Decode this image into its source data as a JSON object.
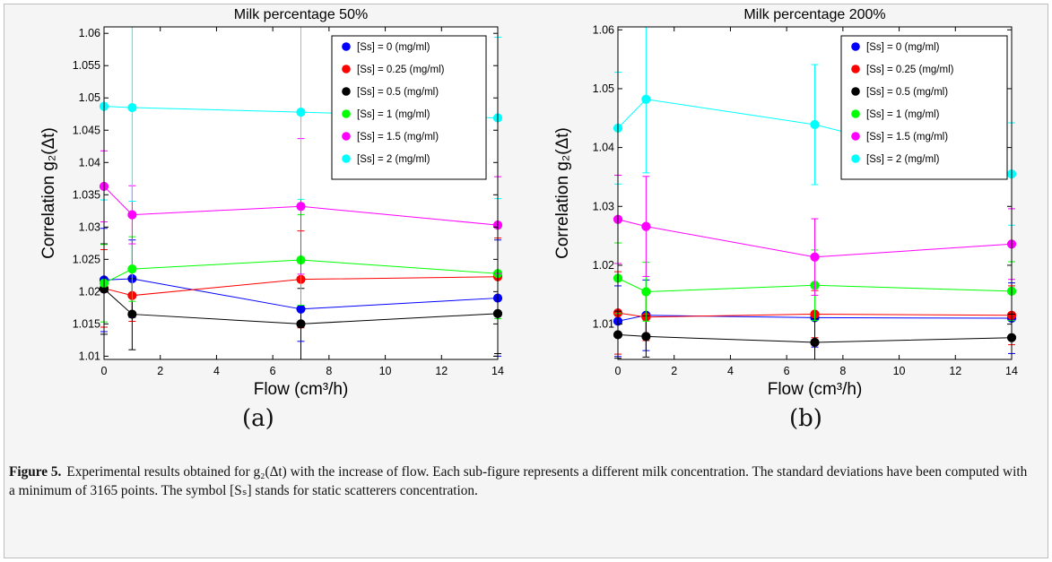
{
  "figure": {
    "caption_label": "Figure 5.",
    "caption_text": "Experimental results obtained for g₂(Δt) with the increase of flow. Each sub-figure represents a different milk concentration. The standard deviations have been computed with a minimum of 3165 points. The symbol [Sₛ] stands for static scatterers concentration.",
    "panel_labels": [
      "(a)",
      "(b)"
    ]
  },
  "colors": {
    "c0": "#0000ff",
    "c025": "#ff0000",
    "c05": "#000000",
    "c1": "#00ff00",
    "c15": "#ff00ff",
    "c2": "#00ffff"
  },
  "chart_data": [
    {
      "type": "line",
      "title": "Milk percentage 50%",
      "xlabel": "Flow (cm³/h)",
      "ylabel": "Correlation g₂(Δt)",
      "xlim": [
        0,
        14
      ],
      "ylim": [
        1.0095,
        1.061
      ],
      "xticks": [
        0,
        2,
        4,
        6,
        8,
        10,
        12,
        14
      ],
      "yticks": [
        1.01,
        1.015,
        1.02,
        1.025,
        1.03,
        1.035,
        1.04,
        1.045,
        1.05,
        1.055,
        1.06
      ],
      "ytick_labels": [
        "1.01",
        "1.015",
        "1.02",
        "1.025",
        "1.03",
        "1.035",
        "1.04",
        "1.045",
        "1.05",
        "1.055",
        "1.06"
      ],
      "legend_position": "top-right",
      "x": [
        0,
        1,
        7,
        14
      ],
      "series": [
        {
          "name": "[Ss] = 0 (mg/ml)",
          "color": "#0000ff",
          "values": [
            1.0218,
            1.022,
            1.0173,
            1.019
          ],
          "err": [
            0.008,
            0.006,
            0.005,
            0.009
          ]
        },
        {
          "name": "[Ss] = 0.25 (mg/ml)",
          "color": "#ff0000",
          "values": [
            1.0205,
            1.0194,
            1.0219,
            1.0223
          ],
          "err": [
            0.006,
            0.004,
            0.0075,
            0.006
          ]
        },
        {
          "name": "[Ss] = 0.5 (mg/ml)",
          "color": "#000000",
          "values": [
            1.0204,
            1.0165,
            1.015,
            1.0166
          ],
          "err": [
            0.007,
            0.0055,
            0.0055,
            0.0062
          ]
        },
        {
          "name": "[Ss] = 1 (mg/ml)",
          "color": "#00ff00",
          "values": [
            1.0213,
            1.0235,
            1.0249,
            1.0228
          ],
          "err": [
            0.006,
            0.005,
            0.007,
            0.007
          ]
        },
        {
          "name": "[Ss] = 1.5 (mg/ml)",
          "color": "#ff00ff",
          "values": [
            1.0363,
            1.0319,
            1.0332,
            1.0303
          ],
          "err": [
            0.0055,
            0.0045,
            0.0105,
            0.0075
          ]
        },
        {
          "name": "[Ss] = 2 (mg/ml)",
          "color": "#00ffff",
          "values": [
            1.0487,
            1.0485,
            1.0478,
            1.0469
          ],
          "err": [
            0.0145,
            0.0145,
            0.0135,
            0.0125
          ]
        }
      ]
    },
    {
      "type": "line",
      "title": "Milk percentage 200%",
      "xlabel": "Flow (cm³/h)",
      "ylabel": "Correlation g₂(Δt)",
      "xlim": [
        0,
        14
      ],
      "ylim": [
        1.004,
        1.0605
      ],
      "xticks": [
        0,
        2,
        4,
        6,
        8,
        10,
        12,
        14
      ],
      "yticks": [
        1.01,
        1.02,
        1.03,
        1.04,
        1.05,
        1.06
      ],
      "ytick_labels": [
        "1.01",
        "1.02",
        "1.03",
        "1.04",
        "1.05",
        "1.06"
      ],
      "legend_position": "top-right",
      "x": [
        0,
        1,
        7,
        14
      ],
      "series": [
        {
          "name": "[Ss] = 0 (mg/ml)",
          "color": "#0000ff",
          "values": [
            1.0105,
            1.0115,
            1.0111,
            1.011
          ],
          "err": [
            0.006,
            0.006,
            0.005,
            0.006
          ]
        },
        {
          "name": "[Ss] = 0.25 (mg/ml)",
          "color": "#ff0000",
          "values": [
            1.0119,
            1.0112,
            1.0117,
            1.0115
          ],
          "err": [
            0.007,
            0.004,
            0.004,
            0.005
          ]
        },
        {
          "name": "[Ss] = 0.5 (mg/ml)",
          "color": "#000000",
          "values": [
            1.0082,
            1.0079,
            1.0069,
            1.0077
          ],
          "err": [
            0.004,
            0.0035,
            0.004,
            0.004
          ]
        },
        {
          "name": "[Ss] = 1 (mg/ml)",
          "color": "#00ff00",
          "values": [
            1.0178,
            1.0155,
            1.0166,
            1.0156
          ],
          "err": [
            0.006,
            0.005,
            0.006,
            0.005
          ]
        },
        {
          "name": "[Ss] = 1.5 (mg/ml)",
          "color": "#ff00ff",
          "values": [
            1.0278,
            1.0266,
            1.0214,
            1.0236
          ],
          "err": [
            0.0075,
            0.0085,
            0.0065,
            0.006
          ]
        },
        {
          "name": "[Ss] = 2 (mg/ml)",
          "color": "#00ffff",
          "values": [
            1.0433,
            1.0482,
            1.0439,
            1.0355
          ],
          "err": [
            0.0095,
            0.0125,
            0.0102,
            0.0087
          ]
        }
      ]
    }
  ]
}
